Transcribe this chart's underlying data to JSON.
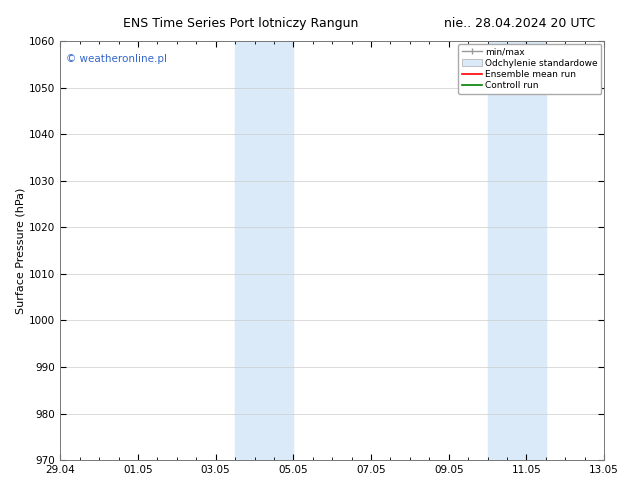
{
  "title": "ENS Time Series Port lotniczy Rangun",
  "title_right": "nie.. 28.04.2024 20 UTC",
  "ylabel": "Surface Pressure (hPa)",
  "ylim": [
    970,
    1060
  ],
  "yticks": [
    970,
    980,
    990,
    1000,
    1010,
    1020,
    1030,
    1040,
    1050,
    1060
  ],
  "xtick_labels": [
    "29.04",
    "01.05",
    "03.05",
    "05.05",
    "07.05",
    "09.05",
    "11.05",
    "13.05"
  ],
  "xtick_positions": [
    0,
    2,
    4,
    6,
    8,
    10,
    12,
    14
  ],
  "shade_bands": [
    {
      "x_start": 4.5,
      "x_end": 6.0
    },
    {
      "x_start": 11.0,
      "x_end": 12.5
    }
  ],
  "watermark": "© weatheronline.pl",
  "watermark_color": "#3366cc",
  "background_color": "#ffffff",
  "plot_bg_color": "#ffffff",
  "shade_color": "#daeaf8",
  "legend_items": [
    {
      "label": "min/max",
      "color": "#aaaaaa",
      "type": "line"
    },
    {
      "label": "Odchylenie standardowe",
      "color": "#daeaf8",
      "type": "bar"
    },
    {
      "label": "Ensemble mean run",
      "color": "red",
      "type": "line"
    },
    {
      "label": "Controll run",
      "color": "green",
      "type": "line"
    }
  ],
  "tick_fontsize": 7.5,
  "label_fontsize": 8,
  "title_fontsize": 9,
  "watermark_fontsize": 7.5,
  "legend_fontsize": 6.5
}
